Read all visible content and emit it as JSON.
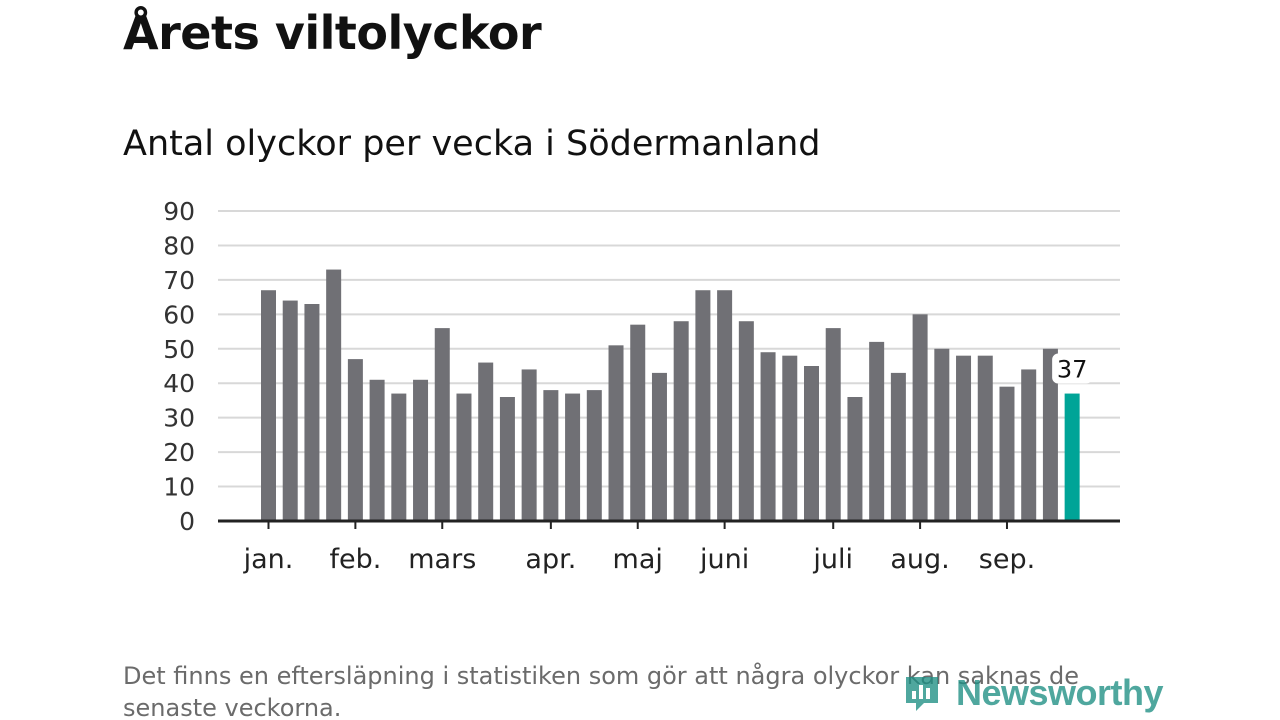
{
  "header": {
    "title": "Årets viltolyckor",
    "subtitle": "Antal olyckor per vecka i Södermanland"
  },
  "footer": {
    "note": "Det finns en eftersläpning i statistiken som gör att några olyckor kan saknas de senaste veckorna.",
    "brand": "Newsworthy"
  },
  "colors": {
    "bar": "#707075",
    "highlight": "#00a497",
    "grid": "#d8d8d8",
    "axis": "#222222"
  },
  "chart_data": {
    "type": "bar",
    "title": "Antal olyckor per vecka i Södermanland",
    "xlabel": "",
    "ylabel": "",
    "ylim": [
      0,
      90
    ],
    "yticks": [
      0,
      10,
      20,
      30,
      40,
      50,
      60,
      70,
      80,
      90
    ],
    "grid": true,
    "week_values": [
      67,
      64,
      63,
      73,
      47,
      41,
      37,
      41,
      56,
      37,
      46,
      36,
      44,
      38,
      37,
      38,
      51,
      57,
      43,
      58,
      67,
      67,
      58,
      49,
      48,
      45,
      56,
      36,
      52,
      43,
      60,
      50,
      48,
      48,
      39,
      44,
      50,
      37
    ],
    "month_labels": [
      {
        "label": "jan.",
        "bar_index": 0
      },
      {
        "label": "feb.",
        "bar_index": 4
      },
      {
        "label": "mars",
        "bar_index": 8
      },
      {
        "label": "apr.",
        "bar_index": 13
      },
      {
        "label": "maj",
        "bar_index": 17
      },
      {
        "label": "juni",
        "bar_index": 21
      },
      {
        "label": "juli",
        "bar_index": 26
      },
      {
        "label": "aug.",
        "bar_index": 30
      },
      {
        "label": "sep.",
        "bar_index": 34
      }
    ],
    "highlight": {
      "bar_index": 37,
      "label": "37"
    }
  }
}
